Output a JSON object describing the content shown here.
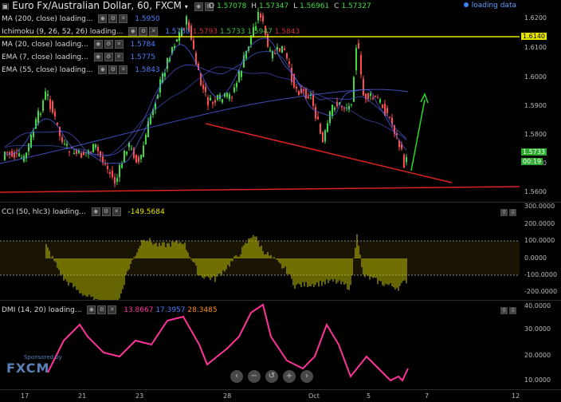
{
  "header": {
    "title": "Euro Fx/Australian Dollar, 60, FXCM",
    "ohlc": {
      "o_label": "O",
      "o": "1.57078",
      "h_label": "H",
      "h": "1.57347",
      "l_label": "L",
      "l": "1.56961",
      "c_label": "C",
      "c": "1.57327"
    },
    "loading_text": "loading data"
  },
  "indicators": [
    {
      "label": "MA (200, close) loading...",
      "value": "1.5950",
      "color": "#4f7fff"
    },
    {
      "label": "Ichimoku (9, 26, 52, 26) loading...",
      "values": [
        {
          "v": "1.5750",
          "c": "#4f7fff"
        },
        {
          "v": "1.5793",
          "c": "#d03030"
        },
        {
          "v": "1.5733",
          "c": "#3fbf3f"
        },
        {
          "v": "1.5947",
          "c": "#3fbf3f"
        },
        {
          "v": "1.5843",
          "c": "#d03030"
        }
      ]
    },
    {
      "label": "MA (20, close) loading...",
      "value": "1.5784",
      "color": "#4f7fff"
    },
    {
      "label": "EMA (7, close) loading...",
      "value": "1.5775",
      "color": "#4f7fff"
    },
    {
      "label": "EMA (55, close) loading...",
      "value": "1.5843",
      "color": "#4f7fff"
    }
  ],
  "price_axis": {
    "ticks": [
      "1.6200",
      "1.6100",
      "1.6000",
      "1.5900",
      "1.5800",
      "1.5700",
      "1.5600"
    ],
    "tags": [
      {
        "text": "1.6140",
        "bg": "#e6e600",
        "fg": "#000"
      },
      {
        "text": "1.5733",
        "bg": "#2eaa2e",
        "fg": "#fff"
      },
      {
        "text": "00:19",
        "bg": "#2eaa2e",
        "fg": "#fff"
      }
    ]
  },
  "cci": {
    "label": "CCI (50, hlc3) loading...",
    "value": "-149.5684",
    "value_color": "#e6e600",
    "ticks": [
      "300.0000",
      "200.0000",
      "100.0000",
      "0.0000",
      "-100.0000",
      "-200.0000"
    ]
  },
  "dmi": {
    "label": "DMI (14, 20) loading...",
    "values": [
      {
        "v": "13.8667",
        "c": "#ff3399"
      },
      {
        "v": "17.3957",
        "c": "#4f7fff"
      },
      {
        "v": "28.3485",
        "c": "#ff8c1a"
      }
    ],
    "ticks": [
      "40.0000",
      "30.0000",
      "20.0000",
      "10.0000"
    ]
  },
  "time_axis": {
    "labels": [
      "17",
      "21",
      "23",
      "28",
      "Oct",
      "5",
      "7",
      "12"
    ]
  },
  "sponsor": {
    "small": "Sponsored by",
    "brand": "FXCM"
  },
  "nav_icons": [
    "chevron-left-icon",
    "minus-icon",
    "reset-icon",
    "plus-icon",
    "chevron-right-icon"
  ],
  "chart_data": {
    "type": "candlestick",
    "title": "Euro Fx/Australian Dollar, 60, FXCM",
    "ylim": [
      1.556,
      1.626
    ],
    "overlays": [
      "horizontal line 1.6140 (yellow)",
      "horizontal support (red)",
      "descending trendline (red)",
      "up arrow projection (green)"
    ],
    "last_close": 1.5733
  }
}
